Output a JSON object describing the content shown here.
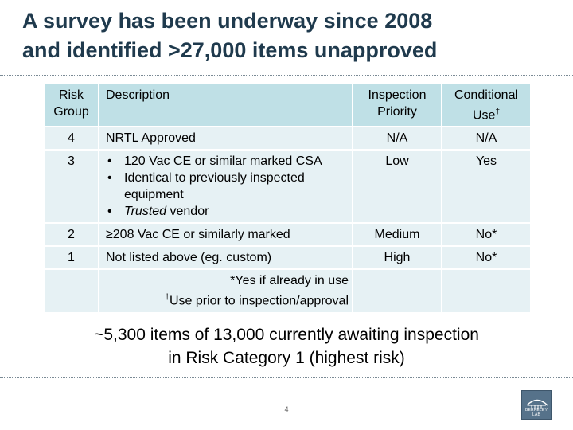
{
  "title": {
    "line1": "A survey has been underway since 2008",
    "line2": "and identified >27,000 items unapproved"
  },
  "table": {
    "headers": {
      "risk_group_line1": "Risk",
      "risk_group_line2": "Group",
      "description": "Description",
      "inspection_line1": "Inspection",
      "inspection_line2": "Priority",
      "conditional_line1": "Conditional",
      "conditional_line2": "Use",
      "conditional_mark": "†"
    },
    "rows": [
      {
        "group": "4",
        "description": "NRTL Approved",
        "priority": "N/A",
        "conditional": "N/A"
      },
      {
        "group": "3",
        "bullets": {
          "b1": "120 Vac CE or similar marked CSA",
          "b2": "Identical to previously inspected equipment",
          "b3_italic": "Trusted",
          "b3_rest": " vendor"
        },
        "priority": "Low",
        "conditional": "Yes"
      },
      {
        "group": "2",
        "description": "≥208 Vac CE or similarly marked",
        "priority": "Medium",
        "conditional": "No*"
      },
      {
        "group": "1",
        "description": "Not listed above (eg. custom)",
        "priority": "High",
        "conditional": "No*"
      }
    ],
    "footnotes": {
      "line1": "*Yes if already in use",
      "line2_mark": "†",
      "line2": "Use prior to inspection/approval"
    }
  },
  "summary": {
    "line1": "~5,300 items of 13,000 currently awaiting inspection",
    "line2": "in Risk Category 1 (highest risk)"
  },
  "page_number": "4",
  "logo": {
    "text": "BERKELEY LAB",
    "icon": "berkeley-lab-logo-icon"
  },
  "colors": {
    "title": "#1f3a4d",
    "header_fill": "#bfe0e6",
    "row_fill": "#e6f1f4",
    "logo_fill": "#56728a"
  }
}
